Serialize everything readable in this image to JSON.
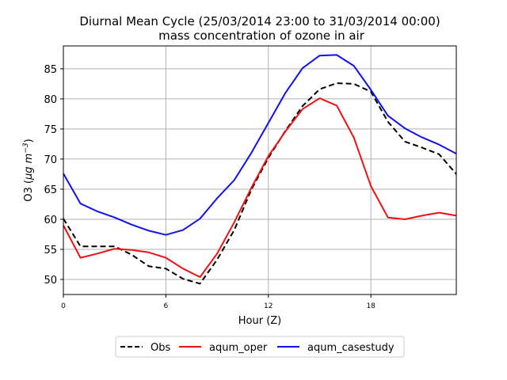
{
  "chart_data": {
    "type": "line",
    "title": "Diurnal Mean Cycle (25/03/2014 23:00 to 31/03/2014 00:00)",
    "subtitle": "mass concentration of ozone in air",
    "xlabel": "Hour (Z)",
    "ylabel_prefix": "O3 (",
    "ylabel_unit_mu": "μg m",
    "ylabel_unit_exp": "−3",
    "ylabel_suffix": ")",
    "xlim": [
      0,
      23
    ],
    "ylim": [
      47.5,
      88.8
    ],
    "x_ticks": [
      0,
      6,
      12,
      18
    ],
    "x_tick_labels": [
      "0",
      "6",
      "12",
      "18"
    ],
    "y_ticks": [
      50,
      55,
      60,
      65,
      70,
      75,
      80,
      85
    ],
    "y_tick_labels": [
      "50",
      "55",
      "60",
      "65",
      "70",
      "75",
      "80",
      "85"
    ],
    "grid": true,
    "legend_position": "bottom-center",
    "x": [
      0,
      1,
      2,
      3,
      4,
      5,
      6,
      7,
      8,
      9,
      10,
      11,
      12,
      13,
      14,
      15,
      16,
      17,
      18,
      19,
      20,
      21,
      22,
      23
    ],
    "series": [
      {
        "name": "Obs",
        "color": "#000000",
        "dashed": true,
        "values": [
          60.1,
          55.5,
          55.5,
          55.5,
          54.1,
          52.2,
          51.8,
          50.1,
          49.3,
          53.3,
          58.2,
          64.9,
          70.2,
          74.7,
          78.8,
          81.6,
          82.6,
          82.5,
          81.2,
          76.2,
          72.9,
          71.9,
          70.8,
          67.5
        ]
      },
      {
        "name": "aqum_oper",
        "color": "#ee1111",
        "dashed": false,
        "values": [
          59.0,
          53.6,
          54.3,
          55.1,
          54.9,
          54.5,
          53.6,
          51.8,
          50.4,
          54.3,
          59.5,
          65.2,
          70.5,
          74.6,
          78.3,
          80.1,
          78.9,
          73.6,
          65.5,
          60.3,
          60.0,
          60.6,
          61.1,
          60.6
        ]
      },
      {
        "name": "aqum_casestudy",
        "color": "#1111ee",
        "dashed": false,
        "values": [
          67.6,
          62.6,
          61.3,
          60.3,
          59.1,
          58.1,
          57.4,
          58.2,
          60.1,
          63.5,
          66.5,
          71.0,
          76.0,
          81.0,
          85.1,
          87.2,
          87.3,
          85.5,
          81.5,
          77.2,
          75.1,
          73.6,
          72.4,
          70.9
        ]
      }
    ]
  }
}
